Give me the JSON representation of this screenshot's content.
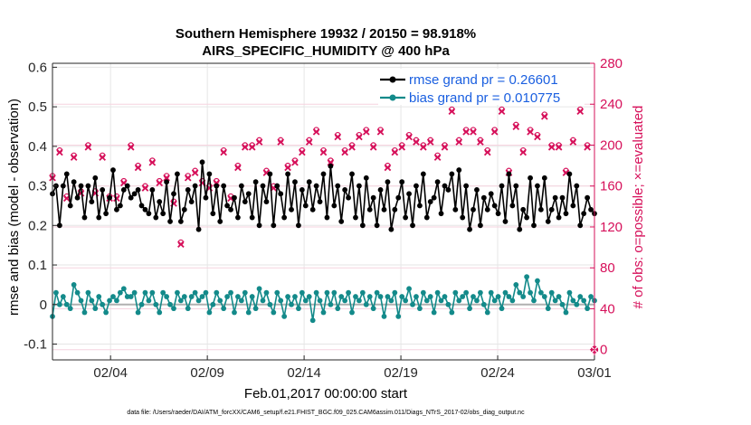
{
  "chart_data": {
    "type": "line",
    "title": "Southern Hemisphere 19932 / 20150 = 98.918%",
    "subtitle": "AIRS_SPECIFIC_HUMIDITY @ 400 hPa",
    "xlabel": "Feb.01,2017 00:00:00 start",
    "ylabel": "rmse and bias (model - observation)",
    "y2label": "# of obs: o=possible; ×=evaluated",
    "footnote": "data file: /Users/raeder/DAI/ATM_forcXX/CAM6_setup/f.e21.FHIST_BGC.f09_025.CAM6assim.011/Diags_NTrS_2017-02/obs_diag_output.nc",
    "xlim": [
      0,
      28
    ],
    "ylim": [
      -0.14,
      0.61
    ],
    "y2lim": [
      -10,
      280
    ],
    "xticks": [
      3,
      8,
      13,
      18,
      23,
      28
    ],
    "xtick_labels": [
      "02/04",
      "02/09",
      "02/14",
      "02/19",
      "02/24",
      "03/01"
    ],
    "yticks": [
      -0.1,
      0,
      0.1,
      0.2,
      0.3,
      0.4,
      0.5,
      0.6
    ],
    "ytick_labels": [
      "-0.1",
      "0",
      "0.1",
      "0.2",
      "0.3",
      "0.4",
      "0.5",
      "0.6"
    ],
    "y2ticks": [
      0,
      40,
      80,
      120,
      160,
      200,
      240,
      280
    ],
    "y2tick_labels": [
      "0",
      "40",
      "80",
      "120",
      "160",
      "200",
      "240",
      "280"
    ],
    "legend_position": "top-right",
    "colors": {
      "rmse": "#000000",
      "bias": "#138a8a",
      "obs": "#d6105a",
      "zero_line": "#b0b0b0",
      "legend_text": "#1a5fe0"
    },
    "series": [
      {
        "name": "rmse grand pr = 0.26601",
        "values": [
          0.28,
          0.3,
          0.2,
          0.3,
          0.33,
          0.25,
          0.31,
          0.27,
          0.3,
          0.22,
          0.3,
          0.26,
          0.32,
          0.22,
          0.29,
          0.23,
          0.27,
          0.34,
          0.24,
          0.25,
          0.29,
          0.3,
          0.27,
          0.28,
          0.29,
          0.25,
          0.24,
          0.23,
          0.29,
          0.22,
          0.26,
          0.23,
          0.31,
          0.21,
          0.28,
          0.33,
          0.21,
          0.24,
          0.29,
          0.26,
          0.3,
          0.19,
          0.36,
          0.27,
          0.33,
          0.23,
          0.3,
          0.21,
          0.3,
          0.25,
          0.24,
          0.27,
          0.22,
          0.3,
          0.26,
          0.28,
          0.22,
          0.31,
          0.2,
          0.3,
          0.26,
          0.33,
          0.2,
          0.3,
          0.28,
          0.22,
          0.33,
          0.24,
          0.31,
          0.2,
          0.29,
          0.25,
          0.31,
          0.24,
          0.3,
          0.26,
          0.33,
          0.22,
          0.35,
          0.25,
          0.3,
          0.21,
          0.29,
          0.27,
          0.33,
          0.22,
          0.3,
          0.2,
          0.32,
          0.24,
          0.27,
          0.2,
          0.29,
          0.24,
          0.31,
          0.19,
          0.24,
          0.27,
          0.31,
          0.22,
          0.28,
          0.2,
          0.3,
          0.25,
          0.33,
          0.22,
          0.26,
          0.27,
          0.31,
          0.23,
          0.3,
          0.29,
          0.33,
          0.24,
          0.34,
          0.22,
          0.3,
          0.19,
          0.24,
          0.29,
          0.2,
          0.27,
          0.24,
          0.28,
          0.25,
          0.23,
          0.3,
          0.21,
          0.33,
          0.25,
          0.3,
          0.19,
          0.24,
          0.22,
          0.32,
          0.2,
          0.3,
          0.24,
          0.32,
          0.21,
          0.24,
          0.27,
          0.22,
          0.27,
          0.23,
          0.33,
          0.25,
          0.3,
          0.2,
          0.23,
          0.27,
          0.24,
          0.23
        ],
        "marker": "filled-circle"
      },
      {
        "name": "bias grand pr = 0.010775",
        "values": [
          -0.03,
          0.03,
          0,
          0.02,
          0,
          -0.01,
          0.05,
          0.03,
          0.01,
          -0.02,
          0.03,
          0.01,
          -0.01,
          0.02,
          0,
          -0.02,
          0.01,
          0.02,
          0.01,
          0.03,
          0.04,
          0.02,
          0.02,
          0.03,
          -0.02,
          0,
          0.03,
          0.01,
          0.03,
          0,
          -0.02,
          0.03,
          0.02,
          0,
          -0.01,
          0.03,
          0.01,
          0.02,
          -0.01,
          0.02,
          0.03,
          0.01,
          0.02,
          0.03,
          -0.02,
          0,
          0.03,
          0.01,
          -0.01,
          0.02,
          0.03,
          -0.02,
          0.02,
          0.01,
          0.03,
          -0.02,
          0.02,
          -0.01,
          0.04,
          0.01,
          0.03,
          0,
          -0.02,
          0.03,
          0.01,
          -0.03,
          0.02,
          0,
          0.02,
          -0.01,
          0.03,
          0.01,
          0.02,
          -0.04,
          0.03,
          0.01,
          -0.02,
          0.03,
          0,
          0.03,
          -0.01,
          0.02,
          0.01,
          0.03,
          -0.02,
          0.02,
          0.01,
          0.03,
          0,
          0.02,
          -0.01,
          0.03,
          0.02,
          -0.03,
          0.02,
          0.01,
          0.03,
          -0.03,
          0.02,
          0.01,
          0.04,
          0,
          0.02,
          -0.01,
          0.03,
          0.01,
          0.02,
          -0.02,
          0.03,
          0.01,
          0.02,
          0,
          -0.02,
          0.03,
          0.01,
          0.02,
          0.03,
          -0.01,
          0.02,
          0.01,
          0.03,
          0,
          -0.02,
          0.03,
          0.01,
          0.02,
          -0.01,
          0.03,
          0.02,
          0.01,
          0.05,
          0.03,
          0.02,
          0.07,
          0.03,
          0.01,
          0.06,
          0.03,
          0.02,
          -0.01,
          0.03,
          0.01,
          0.02,
          0,
          -0.02,
          0.03,
          0.01,
          0,
          0.02,
          0.01,
          -0.01,
          0.02,
          0.01
        ],
        "marker": "filled-circle"
      },
      {
        "name": "obs possible",
        "axis": "right",
        "marker": "open-circle",
        "values": [
          170,
          185,
          195,
          140,
          150,
          175,
          190,
          165,
          155,
          160,
          200,
          195,
          155,
          170,
          190,
          175,
          150,
          180,
          150,
          175,
          165,
          170,
          200,
          195,
          180,
          170,
          160,
          175,
          185,
          190,
          165,
          155,
          170,
          175,
          145,
          185,
          105,
          140,
          170,
          175,
          175,
          190,
          165,
          155,
          160,
          185,
          165,
          160,
          195,
          180,
          150,
          165,
          180,
          190,
          200,
          185,
          200,
          190,
          205,
          200,
          175,
          190,
          160,
          175,
          205,
          195,
          180,
          200,
          185,
          170,
          195,
          190,
          205,
          200,
          215,
          175,
          195,
          205,
          185,
          165,
          210,
          200,
          195,
          180,
          200,
          205,
          210,
          195,
          215,
          175,
          200,
          210,
          215,
          200,
          180,
          205,
          195,
          220,
          200,
          190,
          210,
          200,
          205,
          230,
          200,
          215,
          205,
          210,
          190,
          230,
          200,
          215,
          235,
          210,
          205,
          205,
          215,
          220,
          215,
          225,
          205,
          200,
          195,
          215,
          215,
          210,
          235,
          205,
          175,
          245,
          220,
          205,
          195,
          225,
          215,
          205,
          210,
          200,
          230,
          225,
          200,
          215,
          200,
          210,
          175,
          230,
          205,
          210,
          235,
          215,
          200,
          230
        ]
      },
      {
        "name": "obs evaluated",
        "axis": "right",
        "marker": "x",
        "values": [
          168,
          183,
          193,
          138,
          148,
          173,
          188,
          163,
          153,
          158,
          198,
          193,
          153,
          168,
          188,
          173,
          148,
          178,
          148,
          173,
          163,
          168,
          198,
          193,
          178,
          168,
          158,
          173,
          183,
          188,
          163,
          153,
          168,
          173,
          143,
          183,
          103,
          138,
          168,
          173,
          173,
          188,
          163,
          153,
          158,
          183,
          163,
          158,
          193,
          178,
          148,
          163,
          178,
          188,
          198,
          183,
          198,
          188,
          203,
          198,
          173,
          188,
          158,
          173,
          203,
          193,
          178,
          198,
          183,
          168,
          193,
          188,
          203,
          198,
          213,
          173,
          193,
          203,
          183,
          163,
          208,
          198,
          193,
          178,
          198,
          203,
          208,
          193,
          213,
          173,
          198,
          208,
          213,
          198,
          178,
          203,
          193,
          218,
          198,
          188,
          208,
          198,
          203,
          228,
          198,
          213,
          203,
          208,
          188,
          228,
          198,
          213,
          233,
          208,
          203,
          203,
          213,
          218,
          213,
          223,
          203,
          198,
          193,
          213,
          213,
          208,
          233,
          203,
          173,
          243,
          218,
          203,
          193,
          223,
          213,
          203,
          208,
          198,
          228,
          223,
          198,
          213,
          198,
          208,
          173,
          228,
          203,
          208,
          233,
          213,
          198,
          228
        ]
      }
    ],
    "extra_points": [
      {
        "name": "obs evaluated final",
        "x": 28,
        "y2": 0
      }
    ]
  }
}
